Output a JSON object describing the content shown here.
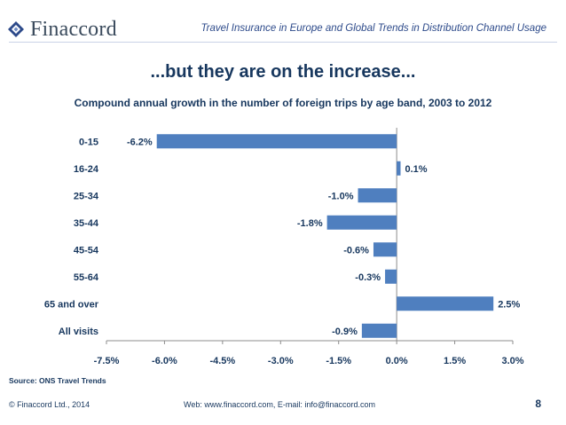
{
  "header": {
    "brand": "Finaccord",
    "title": "Travel Insurance in Europe and Global Trends in Distribution Channel Usage"
  },
  "slide_title": "...but they are on the increase...",
  "chart_data": {
    "type": "bar",
    "orientation": "horizontal",
    "title": "Compound annual growth in the number of foreign trips by age band, 2003 to 2012",
    "categories": [
      "0-15",
      "16-24",
      "25-34",
      "35-44",
      "45-54",
      "55-64",
      "65 and over",
      "All visits"
    ],
    "values": [
      -6.2,
      0.1,
      -1.0,
      -1.8,
      -0.6,
      -0.3,
      2.5,
      -0.9
    ],
    "value_labels": [
      "-6.2%",
      "0.1%",
      "-1.0%",
      "-1.8%",
      "-0.6%",
      "-0.3%",
      "2.5%",
      "-0.9%"
    ],
    "xlim": [
      -7.5,
      3.0
    ],
    "x_ticks": [
      -7.5,
      -6.0,
      -4.5,
      -3.0,
      -1.5,
      0.0,
      1.5,
      3.0
    ],
    "x_tick_labels": [
      "-7.5%",
      "-6.0%",
      "-4.5%",
      "-3.0%",
      "-1.5%",
      "0.0%",
      "1.5%",
      "3.0%"
    ],
    "bar_color": "#4f7fbf",
    "grid": false
  },
  "footer": {
    "source": "Source: ONS Travel Trends",
    "copyright": "© Finaccord Ltd., 2014",
    "contact": "Web: www.finaccord.com, E-mail: info@finaccord.com",
    "page_number": "8"
  }
}
